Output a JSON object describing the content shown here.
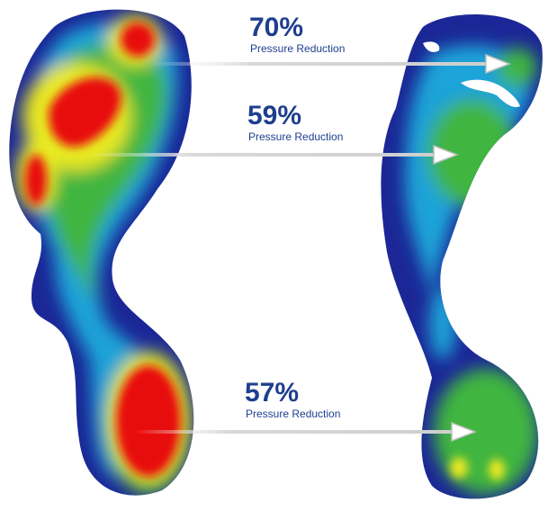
{
  "callouts": [
    {
      "value": "70%",
      "label": "Pressure Reduction"
    },
    {
      "value": "59%",
      "label": "Pressure Reduction"
    },
    {
      "value": "57%",
      "label": "Pressure Reduction"
    }
  ]
}
